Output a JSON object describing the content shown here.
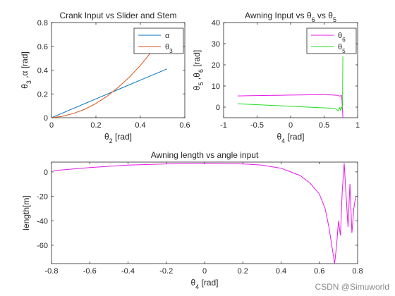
{
  "watermark": "CSDN @Simuworld",
  "chart_data": [
    {
      "type": "line",
      "title": "Crank Input vs Slider and Stem",
      "xlabel_base": "θ",
      "xlabel_sub": "2",
      "xlabel_unit": "[rad]",
      "ylabel": "θ3 ,α [rad]",
      "ylabel_parts": [
        "θ",
        "3",
        " ,α [rad]"
      ],
      "xlim": [
        0,
        0.6
      ],
      "ylim": [
        0,
        0.8
      ],
      "xticks": [
        0,
        0.2,
        0.4,
        0.6
      ],
      "xtick_labels": [
        "0",
        "0.2",
        "0.4",
        "0.6"
      ],
      "yticks": [
        0,
        0.2,
        0.4,
        0.6,
        0.8
      ],
      "ytick_labels": [
        "0",
        "0.2",
        "0.4",
        "0.6",
        "0.8"
      ],
      "legend_position": "top-right",
      "series": [
        {
          "name": "α",
          "name_base": "α",
          "name_sub": "",
          "color": "#0072BD",
          "x": [
            0,
            0.1,
            0.2,
            0.3,
            0.4,
            0.52
          ],
          "y": [
            0,
            0.079,
            0.158,
            0.237,
            0.316,
            0.41
          ]
        },
        {
          "name": "θ3",
          "name_base": "θ",
          "name_sub": "3",
          "color": "#D95319",
          "x": [
            0,
            0.05,
            0.1,
            0.15,
            0.2,
            0.25,
            0.3,
            0.35,
            0.4,
            0.45,
            0.5,
            0.52
          ],
          "y": [
            0,
            0.012,
            0.037,
            0.071,
            0.12,
            0.18,
            0.255,
            0.34,
            0.44,
            0.555,
            0.685,
            0.74
          ]
        }
      ]
    },
    {
      "type": "line",
      "title": "Awning Input vs θ6 vs θ5",
      "title_parts": [
        "Awning Input vs ",
        "θ",
        "6",
        " vs ",
        "θ",
        "5"
      ],
      "xlabel_base": "θ",
      "xlabel_sub": "4",
      "xlabel_unit": "[rad]",
      "ylabel": "θ5 ,θ6 [rad]",
      "ylabel_parts": [
        "θ",
        "5",
        " ,",
        "θ",
        "6",
        " [rad]"
      ],
      "xlim": [
        -1,
        1
      ],
      "ylim": [
        -5,
        40
      ],
      "xticks": [
        -1,
        -0.5,
        0,
        0.5,
        1
      ],
      "xtick_labels": [
        "-1",
        "-0.5",
        "0",
        "0.5",
        "1"
      ],
      "yticks": [
        0,
        10,
        20,
        30,
        40
      ],
      "ytick_labels": [
        "0",
        "10",
        "20",
        "30",
        "40"
      ],
      "legend_position": "top-right",
      "series": [
        {
          "name": "θ6",
          "name_base": "θ",
          "name_sub": "6",
          "color": "#E619E6",
          "x": [
            -0.79,
            -0.6,
            -0.4,
            -0.2,
            0,
            0.2,
            0.4,
            0.6,
            0.7,
            0.73,
            0.76,
            0.77,
            0.78
          ],
          "y": [
            5.3,
            5.4,
            5.5,
            5.6,
            5.7,
            5.8,
            5.9,
            5.8,
            5.6,
            5.2,
            5.5,
            2,
            -5
          ]
        },
        {
          "name": "θ5",
          "name_base": "θ",
          "name_sub": "5",
          "color": "#22DD22",
          "x": [
            -0.79,
            -0.6,
            -0.4,
            -0.2,
            0,
            0.2,
            0.4,
            0.6,
            0.68,
            0.71,
            0.73,
            0.745,
            0.755,
            0.765,
            0.775,
            0.78
          ],
          "y": [
            1.6,
            1.3,
            1.0,
            0.7,
            0.4,
            0.1,
            -0.2,
            -0.5,
            -0.9,
            -1.8,
            -0.3,
            -1.5,
            0.2,
            -0.8,
            1.0,
            24
          ]
        }
      ]
    },
    {
      "type": "line",
      "title": "Awning length vs angle input",
      "xlabel_base": "θ",
      "xlabel_sub": "4",
      "xlabel_unit": "[rad]",
      "ylabel": "length[m]",
      "xlim": [
        -0.8,
        0.8
      ],
      "ylim": [
        -75,
        8
      ],
      "xticks": [
        -0.8,
        -0.6,
        -0.4,
        -0.2,
        0,
        0.2,
        0.4,
        0.6,
        0.8
      ],
      "xtick_labels": [
        "-0.8",
        "-0.6",
        "-0.4",
        "-0.2",
        "0",
        "0.2",
        "0.4",
        "0.6",
        "0.8"
      ],
      "yticks": [
        -60,
        -40,
        -20,
        0
      ],
      "ytick_labels": [
        "-60",
        "-40",
        "-20",
        "0"
      ],
      "series": [
        {
          "name": "",
          "color": "#E619E6",
          "x": [
            -0.79,
            -0.6,
            -0.4,
            -0.2,
            0,
            0.2,
            0.3,
            0.4,
            0.45,
            0.5,
            0.55,
            0.6,
            0.63,
            0.65,
            0.67,
            0.68,
            0.69,
            0.7,
            0.71,
            0.72,
            0.73,
            0.74,
            0.75,
            0.76,
            0.77,
            0.78,
            0.79
          ],
          "y": [
            1,
            3.5,
            5.5,
            6.5,
            7,
            6.5,
            5.5,
            3,
            0,
            -3,
            -9,
            -18,
            -30,
            -45,
            -65,
            -75,
            -60,
            -40,
            -52,
            -15,
            7,
            -20,
            -45,
            -10,
            -50,
            -30,
            -20
          ]
        }
      ]
    }
  ]
}
